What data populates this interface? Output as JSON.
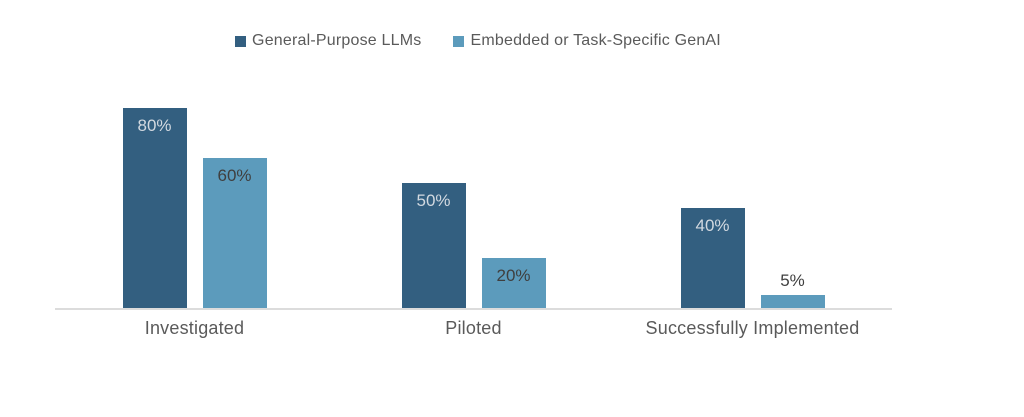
{
  "chart_data": {
    "type": "bar",
    "title": "",
    "xlabel": "",
    "ylabel": "",
    "categories": [
      "Investigated",
      "Piloted",
      "Successfully Implemented"
    ],
    "series": [
      {
        "name": "General-Purpose LLMs",
        "color": "#335f80",
        "values": [
          80,
          50,
          40
        ],
        "labels": [
          "80%",
          "50%",
          "40%"
        ],
        "label_color": "#d2d9e0"
      },
      {
        "name": "Embedded or Task-Specific GenAI",
        "color": "#5c9bbc",
        "values": [
          60,
          20,
          5
        ],
        "labels": [
          "60%",
          "20%",
          "5%"
        ],
        "label_color": "#3f3f3f"
      }
    ],
    "value_suffix": "%",
    "ylim": [
      0,
      100
    ],
    "grid": false,
    "y_axis_visible": false,
    "legend_position": "top",
    "axis_line_color": "#dcdcdc",
    "category_label_color": "#5a5a5a",
    "outside_label_color": "#3f3f3f"
  }
}
